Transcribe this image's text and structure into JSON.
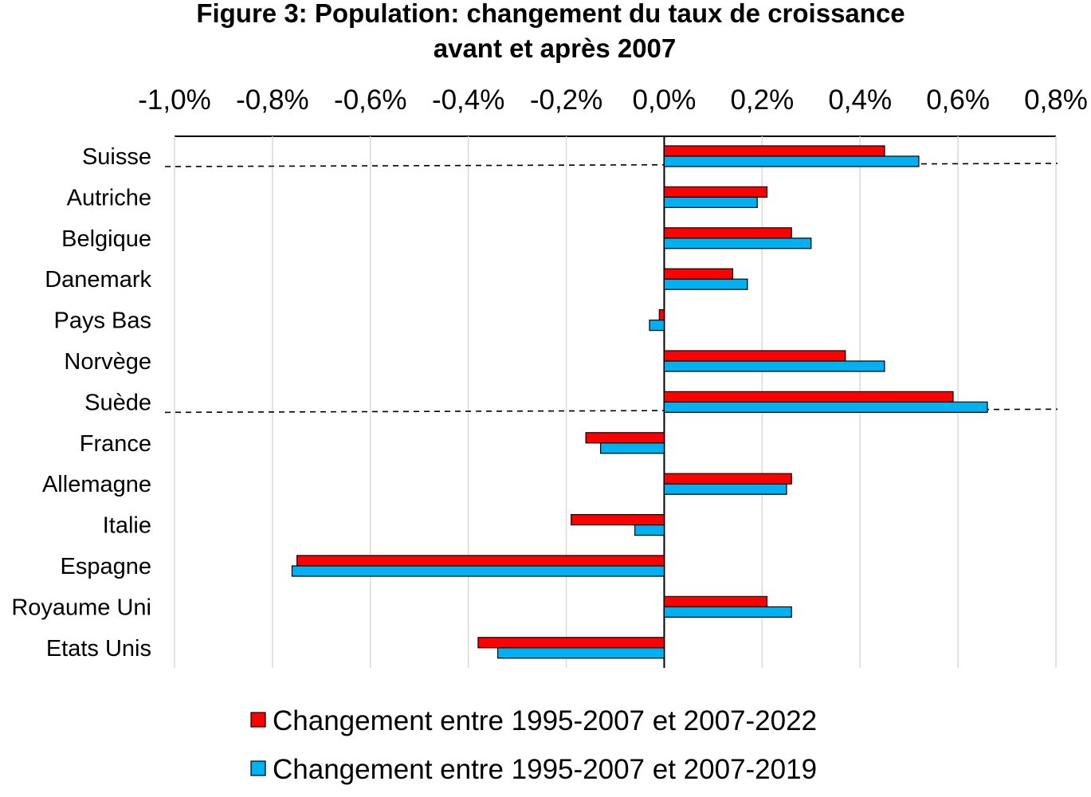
{
  "chart_data": {
    "type": "bar",
    "orientation": "horizontal",
    "title": "Figure 3: Population: changement du taux de croissance",
    "subtitle": "avant et après 2007",
    "x_ticks": [
      "-1,0%",
      "-0,8%",
      "-0,6%",
      "-0,4%",
      "-0,2%",
      "0,0%",
      "0,2%",
      "0,4%",
      "0,6%",
      "0,8%"
    ],
    "xlim": [
      -1.0,
      0.8
    ],
    "x_axis_position": "top",
    "grid": "vertical",
    "categories": [
      "Suisse",
      "Autriche",
      "Belgique",
      "Danemark",
      "Pays Bas",
      "Norvège",
      "Suède",
      "France",
      "Allemagne",
      "Italie",
      "Espagne",
      "Royaume Uni",
      "Etats Unis"
    ],
    "series": [
      {
        "name": "Changement entre 1995-2007 et 2007-2022",
        "color": "#ff0000",
        "values": [
          0.45,
          0.21,
          0.26,
          0.14,
          -0.01,
          0.37,
          0.59,
          -0.16,
          0.26,
          -0.19,
          -0.75,
          0.21,
          -0.38
        ]
      },
      {
        "name": "Changement entre 1995-2007 et 2007-2019",
        "color": "#00b0f0",
        "values": [
          0.52,
          0.19,
          0.3,
          0.17,
          -0.03,
          0.45,
          0.66,
          -0.13,
          0.25,
          -0.06,
          -0.76,
          0.26,
          -0.34
        ]
      }
    ],
    "separators_after": [
      "Suisse",
      "Suède"
    ],
    "legend_position": "bottom"
  }
}
